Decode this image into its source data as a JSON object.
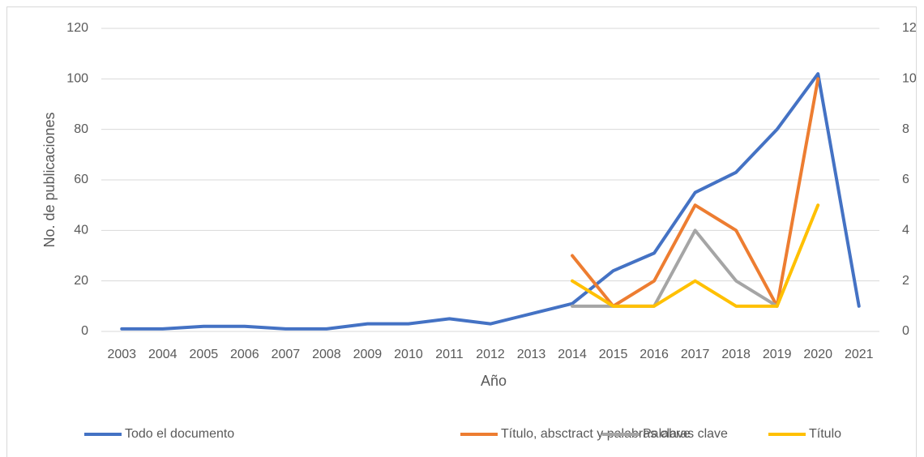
{
  "chart_data": {
    "type": "line",
    "x_label": "Año",
    "y_label": "No. de publicaciones",
    "categories": [
      "2003",
      "2004",
      "2005",
      "2006",
      "2007",
      "2008",
      "2009",
      "2010",
      "2011",
      "2012",
      "2013",
      "2014",
      "2015",
      "2016",
      "2017",
      "2018",
      "2019",
      "2020",
      "2021"
    ],
    "series": [
      {
        "name": "Todo el documento",
        "color": "#4472c4",
        "values": [
          1,
          1,
          2,
          2,
          1,
          1,
          3,
          3,
          5,
          3,
          7,
          11,
          24,
          31,
          55,
          63,
          80,
          102,
          10
        ]
      },
      {
        "name": "Título, absctract y palabras clave",
        "color": "#ed7d31",
        "axis": "y2",
        "values": [
          null,
          null,
          null,
          null,
          null,
          null,
          null,
          null,
          null,
          null,
          null,
          3,
          1,
          2,
          5,
          4,
          1,
          10,
          null
        ]
      },
      {
        "name": "Palabras clave",
        "color": "#a5a5a5",
        "axis": "y2",
        "values": [
          null,
          null,
          null,
          null,
          null,
          null,
          null,
          null,
          null,
          null,
          null,
          1,
          1,
          1,
          4,
          2,
          1,
          null,
          null
        ]
      },
      {
        "name": "Título",
        "color": "#ffc000",
        "axis": "y2",
        "values": [
          null,
          null,
          null,
          null,
          null,
          null,
          null,
          null,
          null,
          null,
          null,
          2,
          1,
          1,
          2,
          1,
          1,
          5,
          null
        ]
      }
    ],
    "ylim": [
      0,
      120
    ],
    "yticks": [
      0,
      20,
      40,
      60,
      80,
      100,
      120
    ],
    "y2lim": [
      0,
      12
    ],
    "y2ticks": [
      0,
      2,
      4,
      6,
      8,
      10,
      12
    ],
    "grid": true,
    "legend": "bottom"
  }
}
